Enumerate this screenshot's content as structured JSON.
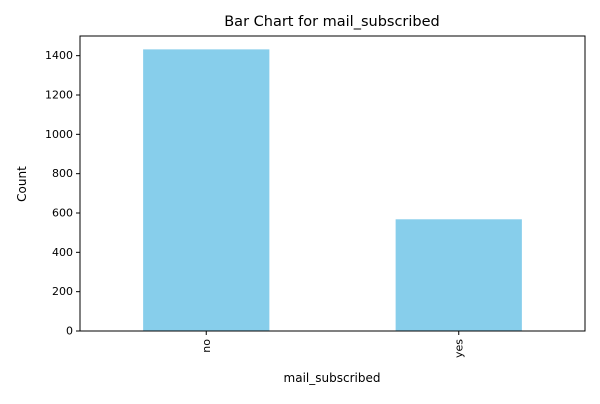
{
  "chart_data": {
    "type": "bar",
    "title": "Bar Chart for mail_subscribed",
    "xlabel": "mail_subscribed",
    "ylabel": "Count",
    "categories": [
      "no",
      "yes"
    ],
    "values": [
      1432,
      568
    ],
    "ylim": [
      0,
      1500
    ],
    "yticks": [
      0,
      200,
      400,
      600,
      800,
      1000,
      1200,
      1400
    ],
    "grid": false,
    "bar_color": "#87CEEB"
  }
}
